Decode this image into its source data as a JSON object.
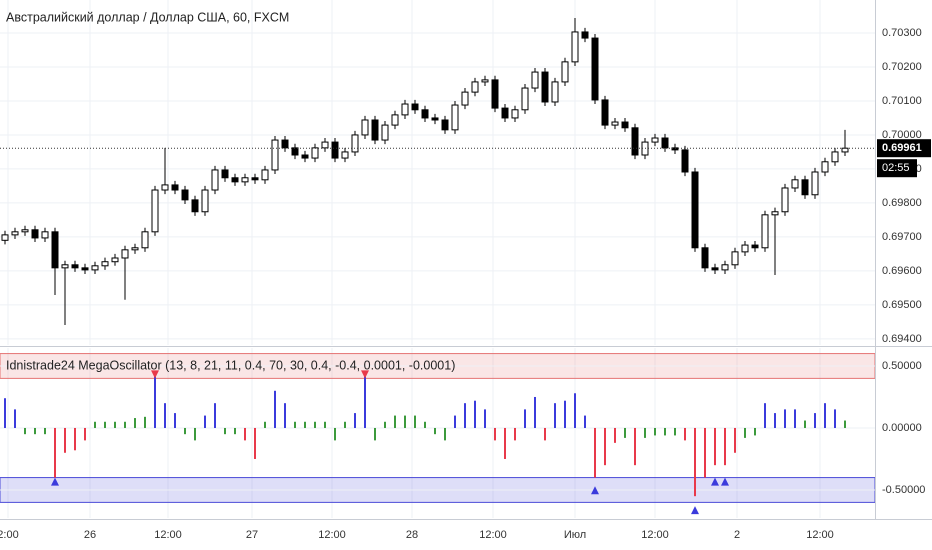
{
  "chart_data": [
    {
      "type": "candlestick",
      "title": "Австралийский доллар / Доллар США, 60, FXCM",
      "up_color": "#ffffff",
      "down_color": "#000000",
      "wick_color": "#000000",
      "xlim": [
        -0.5,
        87
      ],
      "ylim": [
        0.69382,
        0.70397
      ],
      "yticks": [
        {
          "value": 0.694,
          "label": "0.69400"
        },
        {
          "value": 0.695,
          "label": "0.69500"
        },
        {
          "value": 0.696,
          "label": "0.69600"
        },
        {
          "value": 0.697,
          "label": "0.69700"
        },
        {
          "value": 0.698,
          "label": "0.69800"
        },
        {
          "value": 0.699,
          "label": "0.69900"
        },
        {
          "value": 0.7,
          "label": "0.70000"
        },
        {
          "value": 0.701,
          "label": "0.70100"
        },
        {
          "value": 0.702,
          "label": "0.70200"
        },
        {
          "value": 0.703,
          "label": "0.70300"
        }
      ],
      "grid": true,
      "last_price": 0.69961,
      "countdown": "02:55",
      "open": [
        0.6969,
        0.69706,
        0.69715,
        0.69721,
        0.69697,
        0.69715,
        0.69609,
        0.69618,
        0.69609,
        0.69603,
        0.69615,
        0.69627,
        0.69638,
        0.69662,
        0.69668,
        0.69715,
        0.69838,
        0.69853,
        0.69838,
        0.69809,
        0.69774,
        0.69838,
        0.69897,
        0.69874,
        0.69862,
        0.69874,
        0.69868,
        0.69897,
        0.69985,
        0.69962,
        0.69941,
        0.69932,
        0.69962,
        0.69979,
        0.69932,
        0.6995,
        0.7,
        0.70044,
        0.69985,
        0.70029,
        0.70059,
        0.70091,
        0.70074,
        0.7005,
        0.70044,
        0.70015,
        0.70088,
        0.70126,
        0.70156,
        0.70162,
        0.70079,
        0.7005,
        0.70074,
        0.70138,
        0.70185,
        0.70097,
        0.70156,
        0.70215,
        0.70303,
        0.70285,
        0.70103,
        0.70029,
        0.70038,
        0.70021,
        0.69941,
        0.69979,
        0.69991,
        0.69962,
        0.69956,
        0.69891,
        0.69668,
        0.69609,
        0.69603,
        0.69618,
        0.69656,
        0.69676,
        0.69668,
        0.69765,
        0.69774,
        0.69844,
        0.69868,
        0.69824,
        0.69891,
        0.69921,
        0.6995
      ],
      "high": [
        0.69718,
        0.69727,
        0.69733,
        0.69733,
        0.69727,
        0.69727,
        0.6963,
        0.6963,
        0.69621,
        0.69627,
        0.69639,
        0.6965,
        0.69674,
        0.6968,
        0.69727,
        0.6985,
        0.69962,
        0.69865,
        0.6985,
        0.69821,
        0.6985,
        0.69909,
        0.69909,
        0.69886,
        0.69886,
        0.69886,
        0.69909,
        0.69997,
        0.69997,
        0.69974,
        0.69953,
        0.69974,
        0.69991,
        0.69991,
        0.69962,
        0.70012,
        0.70056,
        0.70056,
        0.70041,
        0.70071,
        0.70103,
        0.70103,
        0.70086,
        0.70062,
        0.70056,
        0.701,
        0.70138,
        0.70168,
        0.70174,
        0.70174,
        0.70091,
        0.70086,
        0.7015,
        0.70197,
        0.70197,
        0.70168,
        0.70227,
        0.70344,
        0.70315,
        0.70297,
        0.70115,
        0.7005,
        0.7005,
        0.70033,
        0.69991,
        0.70003,
        0.70003,
        0.69974,
        0.69968,
        0.69903,
        0.6968,
        0.69621,
        0.6963,
        0.69668,
        0.69688,
        0.69688,
        0.69777,
        0.69786,
        0.69856,
        0.6988,
        0.6988,
        0.69903,
        0.69933,
        0.69962,
        0.70015
      ],
      "low": [
        0.69678,
        0.69694,
        0.69703,
        0.69685,
        0.69685,
        0.69529,
        0.69441,
        0.69597,
        0.69591,
        0.69591,
        0.69603,
        0.69615,
        0.69515,
        0.6965,
        0.69656,
        0.69703,
        0.69826,
        0.69826,
        0.69797,
        0.69762,
        0.69762,
        0.69826,
        0.69862,
        0.6985,
        0.6985,
        0.69856,
        0.69856,
        0.69885,
        0.6995,
        0.69929,
        0.6992,
        0.6992,
        0.6995,
        0.6992,
        0.6992,
        0.69938,
        0.69988,
        0.69973,
        0.69973,
        0.70017,
        0.70047,
        0.70062,
        0.70038,
        0.70032,
        0.70003,
        0.70003,
        0.70076,
        0.70114,
        0.70144,
        0.70067,
        0.70038,
        0.70038,
        0.70062,
        0.70126,
        0.70085,
        0.70085,
        0.70144,
        0.70203,
        0.70273,
        0.70091,
        0.70017,
        0.70017,
        0.70009,
        0.69929,
        0.69929,
        0.69967,
        0.6995,
        0.69944,
        0.69879,
        0.69656,
        0.69597,
        0.69591,
        0.69591,
        0.69606,
        0.69644,
        0.69656,
        0.69656,
        0.69588,
        0.69762,
        0.69832,
        0.69812,
        0.69812,
        0.69879,
        0.69909,
        0.69938
      ],
      "close": [
        0.69706,
        0.69715,
        0.69721,
        0.69697,
        0.69715,
        0.69609,
        0.69618,
        0.69609,
        0.69603,
        0.69615,
        0.69627,
        0.69638,
        0.69662,
        0.69668,
        0.69715,
        0.69838,
        0.69853,
        0.69838,
        0.69809,
        0.69774,
        0.69838,
        0.69897,
        0.69874,
        0.69862,
        0.69874,
        0.69868,
        0.69897,
        0.69985,
        0.69962,
        0.69941,
        0.69932,
        0.69962,
        0.69979,
        0.69932,
        0.6995,
        0.7,
        0.70044,
        0.69985,
        0.70029,
        0.70059,
        0.70091,
        0.70074,
        0.7005,
        0.70044,
        0.70015,
        0.70088,
        0.70126,
        0.70156,
        0.70162,
        0.70079,
        0.7005,
        0.70074,
        0.70138,
        0.70185,
        0.70097,
        0.70156,
        0.70215,
        0.70303,
        0.70285,
        0.70103,
        0.70029,
        0.70038,
        0.70021,
        0.69941,
        0.69979,
        0.69991,
        0.69962,
        0.69956,
        0.69891,
        0.69668,
        0.69609,
        0.69603,
        0.69618,
        0.69656,
        0.69676,
        0.69668,
        0.69765,
        0.69774,
        0.69844,
        0.69868,
        0.69824,
        0.69891,
        0.69921,
        0.6995,
        0.69961
      ]
    },
    {
      "type": "bar",
      "title": "Idnistrade24 MegaOscillator (13, 8, 21, 11, 0.4, 70, 30, 0.4, -0.4, 0.0001, -0.0001)",
      "xlim": [
        -0.5,
        87
      ],
      "xticks": [
        {
          "value": 0.3,
          "label": "2:00"
        },
        {
          "value": 8.5,
          "label": "26"
        },
        {
          "value": 16.3,
          "label": "12:00"
        },
        {
          "value": 24.7,
          "label": "27"
        },
        {
          "value": 32.7,
          "label": "12:00"
        },
        {
          "value": 40.7,
          "label": "28"
        },
        {
          "value": 48.8,
          "label": "12:00"
        },
        {
          "value": 57,
          "label": "Июл"
        },
        {
          "value": 65,
          "label": "12:00"
        },
        {
          "value": 73.2,
          "label": "2"
        },
        {
          "value": 81.5,
          "label": "12:00"
        }
      ],
      "ylim": [
        -0.726,
        0.645
      ],
      "yticks": [
        {
          "value": -0.5,
          "label": "-0.50000"
        },
        {
          "value": 0,
          "label": "0.00000"
        },
        {
          "value": 0.5,
          "label": "0.50000"
        }
      ],
      "grid": true,
      "upper_band": [
        0.4,
        0.6
      ],
      "upper_band_color": "#e57373",
      "lower_band": [
        -0.6,
        -0.4
      ],
      "lower_band_color": "#4a4ad8",
      "values": [
        0.24,
        0.15,
        -0.05,
        -0.05,
        -0.05,
        -0.4,
        -0.2,
        -0.18,
        -0.1,
        0.05,
        0.05,
        0.05,
        0.05,
        0.08,
        0.09,
        0.42,
        0.2,
        0.12,
        -0.05,
        -0.1,
        0.1,
        0.2,
        -0.05,
        -0.05,
        -0.1,
        -0.25,
        0.05,
        0.3,
        0.2,
        0.05,
        0.05,
        0.05,
        0.05,
        -0.1,
        0.05,
        0.12,
        0.45,
        -0.1,
        0.05,
        0.1,
        0.1,
        0.1,
        0.05,
        -0.05,
        -0.1,
        0.1,
        0.2,
        0.22,
        0.15,
        -0.1,
        -0.25,
        -0.1,
        0.15,
        0.25,
        -0.1,
        0.2,
        0.22,
        0.28,
        0.1,
        -0.4,
        -0.3,
        -0.12,
        -0.08,
        -0.3,
        -0.08,
        -0.06,
        -0.06,
        -0.06,
        -0.1,
        -0.55,
        -0.4,
        -0.3,
        -0.3,
        -0.2,
        -0.08,
        -0.06,
        0.2,
        0.12,
        0.15,
        0.15,
        0.06,
        0.12,
        0.2,
        0.15,
        0.06
      ],
      "bar_colors": [
        "#3b3bdc",
        "#3b3bdc",
        "#3c9a3c",
        "#3c9a3c",
        "#3c9a3c",
        "#e8394a",
        "#e8394a",
        "#e8394a",
        "#e8394a",
        "#3c9a3c",
        "#3c9a3c",
        "#3c9a3c",
        "#3c9a3c",
        "#3c9a3c",
        "#3c9a3c",
        "#3b3bdc",
        "#3b3bdc",
        "#3b3bdc",
        "#3c9a3c",
        "#3c9a3c",
        "#3b3bdc",
        "#3b3bdc",
        "#3c9a3c",
        "#3c9a3c",
        "#e8394a",
        "#e8394a",
        "#3c9a3c",
        "#3b3bdc",
        "#3b3bdc",
        "#3c9a3c",
        "#3c9a3c",
        "#3c9a3c",
        "#3c9a3c",
        "#3c9a3c",
        "#3c9a3c",
        "#3b3bdc",
        "#3b3bdc",
        "#3c9a3c",
        "#3c9a3c",
        "#3c9a3c",
        "#3c9a3c",
        "#3c9a3c",
        "#3c9a3c",
        "#3c9a3c",
        "#3c9a3c",
        "#3b3bdc",
        "#3b3bdc",
        "#3b3bdc",
        "#3b3bdc",
        "#e8394a",
        "#e8394a",
        "#e8394a",
        "#3b3bdc",
        "#3b3bdc",
        "#e8394a",
        "#3b3bdc",
        "#3b3bdc",
        "#3b3bdc",
        "#3b3bdc",
        "#e8394a",
        "#e8394a",
        "#e8394a",
        "#3c9a3c",
        "#e8394a",
        "#3c9a3c",
        "#3c9a3c",
        "#3c9a3c",
        "#3c9a3c",
        "#e8394a",
        "#e8394a",
        "#e8394a",
        "#e8394a",
        "#e8394a",
        "#e8394a",
        "#3c9a3c",
        "#3c9a3c",
        "#3b3bdc",
        "#3b3bdc",
        "#3b3bdc",
        "#3b3bdc",
        "#3c9a3c",
        "#3b3bdc",
        "#3b3bdc",
        "#3b3bdc",
        "#3c9a3c"
      ],
      "sell_signals": {
        "x": [
          15,
          36
        ],
        "y": [
          0.4,
          0.4
        ],
        "color": "#e8394a"
      },
      "buy_signals": {
        "x": [
          5,
          59,
          69,
          71,
          72
        ],
        "y": [
          -0.4,
          -0.47,
          -0.63,
          -0.4,
          -0.4
        ],
        "color": "#3b3bdc"
      }
    }
  ]
}
